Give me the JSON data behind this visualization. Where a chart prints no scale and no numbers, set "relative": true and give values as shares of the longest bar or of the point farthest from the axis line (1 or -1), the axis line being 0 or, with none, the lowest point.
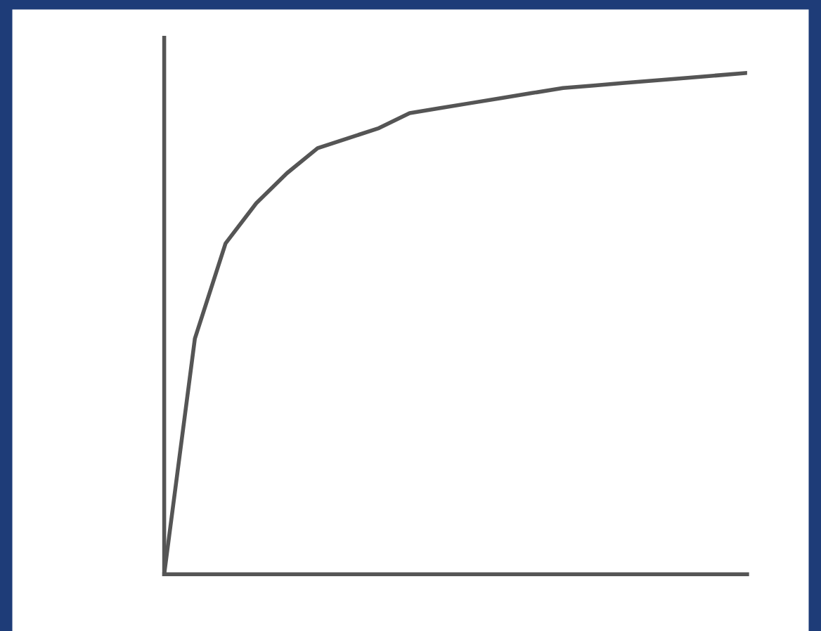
{
  "chart_data": {
    "type": "line",
    "relative": true,
    "categories": [
      null,
      null,
      null,
      null,
      null,
      null,
      null,
      null,
      null,
      null,
      null,
      null,
      null,
      null,
      null,
      null,
      null,
      null,
      null,
      null
    ],
    "series": [
      {
        "color": "#555555",
        "values": [
          0,
          0.47,
          0.66,
          0.74,
          0.8,
          0.85,
          0.87,
          0.89,
          0.92,
          0.93,
          0.94,
          0.95,
          0.96,
          0.97,
          0.975,
          0.98,
          0.985,
          0.99,
          0.995,
          1
        ]
      }
    ],
    "legend": false,
    "marker": "none",
    "line_style": "solid"
  }
}
